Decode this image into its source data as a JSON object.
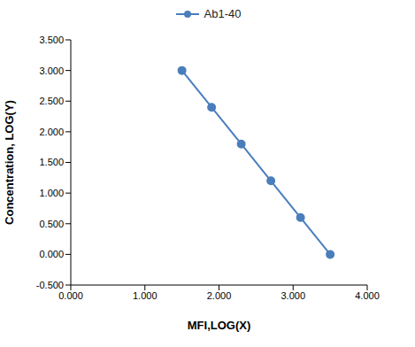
{
  "chart_data": {
    "type": "line",
    "x_label": "MFI,LOG(X)",
    "y_label": "Concentration, LOG(Y)",
    "series": [
      {
        "name": "Ab1-40",
        "color": "#4a7ebb",
        "marker": "circle",
        "x": [
          1.5,
          1.9,
          2.3,
          2.7,
          3.1,
          3.5
        ],
        "values": [
          3.0,
          2.4,
          1.8,
          1.2,
          0.6,
          0.0
        ]
      }
    ],
    "xlim": [
      0,
      4
    ],
    "xticks": [
      {
        "value": 0,
        "label": "0.000"
      },
      {
        "value": 1,
        "label": "1.000"
      },
      {
        "value": 2,
        "label": "2.000"
      },
      {
        "value": 3,
        "label": "3.000"
      },
      {
        "value": 4,
        "label": "4.000"
      }
    ],
    "ylim": [
      -0.5,
      3.5
    ],
    "yticks": [
      {
        "value": -0.5,
        "label": "-0.500"
      },
      {
        "value": 0,
        "label": "0.000"
      },
      {
        "value": 0.5,
        "label": "0.500"
      },
      {
        "value": 1,
        "label": "1.000"
      },
      {
        "value": 1.5,
        "label": "1.500"
      },
      {
        "value": 2,
        "label": "2.000"
      },
      {
        "value": 2.5,
        "label": "2.500"
      },
      {
        "value": 3,
        "label": "3.000"
      },
      {
        "value": 3.5,
        "label": "3.500"
      }
    ],
    "grid": false,
    "legend": "top"
  }
}
